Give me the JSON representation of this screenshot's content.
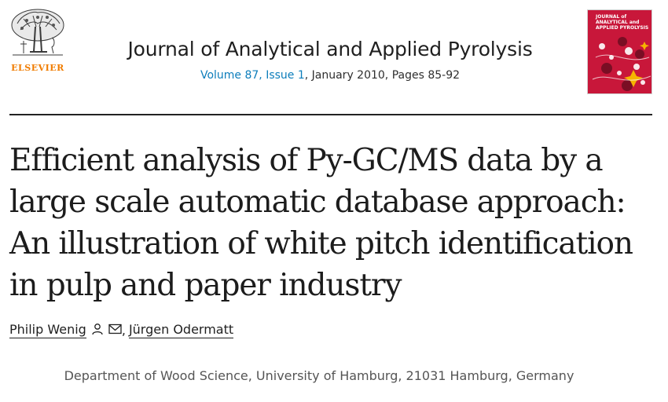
{
  "publisher": {
    "name": "ELSEVIER",
    "logo_icon": "tree-logo-icon"
  },
  "journal": {
    "title": "Journal of Analytical and Applied Pyrolysis",
    "volume_issue": "Volume 87, Issue 1",
    "date_pages": ", January 2010, Pages 85-92",
    "cover_title": "JOURNAL of ANALYTICAL and APPLIED PYROLYSIS"
  },
  "article": {
    "title": "Efficient analysis of Py-GC/MS data by a large scale automatic database approach: An illustration of white pitch identification in pulp and paper industry"
  },
  "authors": [
    {
      "name": "Philip Wenig",
      "icons": [
        "person-icon",
        "envelope-icon"
      ]
    },
    {
      "name": "Jürgen Odermatt",
      "icons": []
    }
  ],
  "author_separator": ",",
  "affiliation": "Department of Wood Science, University of Hamburg, 21031 Hamburg, Germany",
  "colors": {
    "publisher_orange": "#f07c00",
    "link_blue": "#0c7dbb",
    "cover_red": "#c8173a"
  }
}
